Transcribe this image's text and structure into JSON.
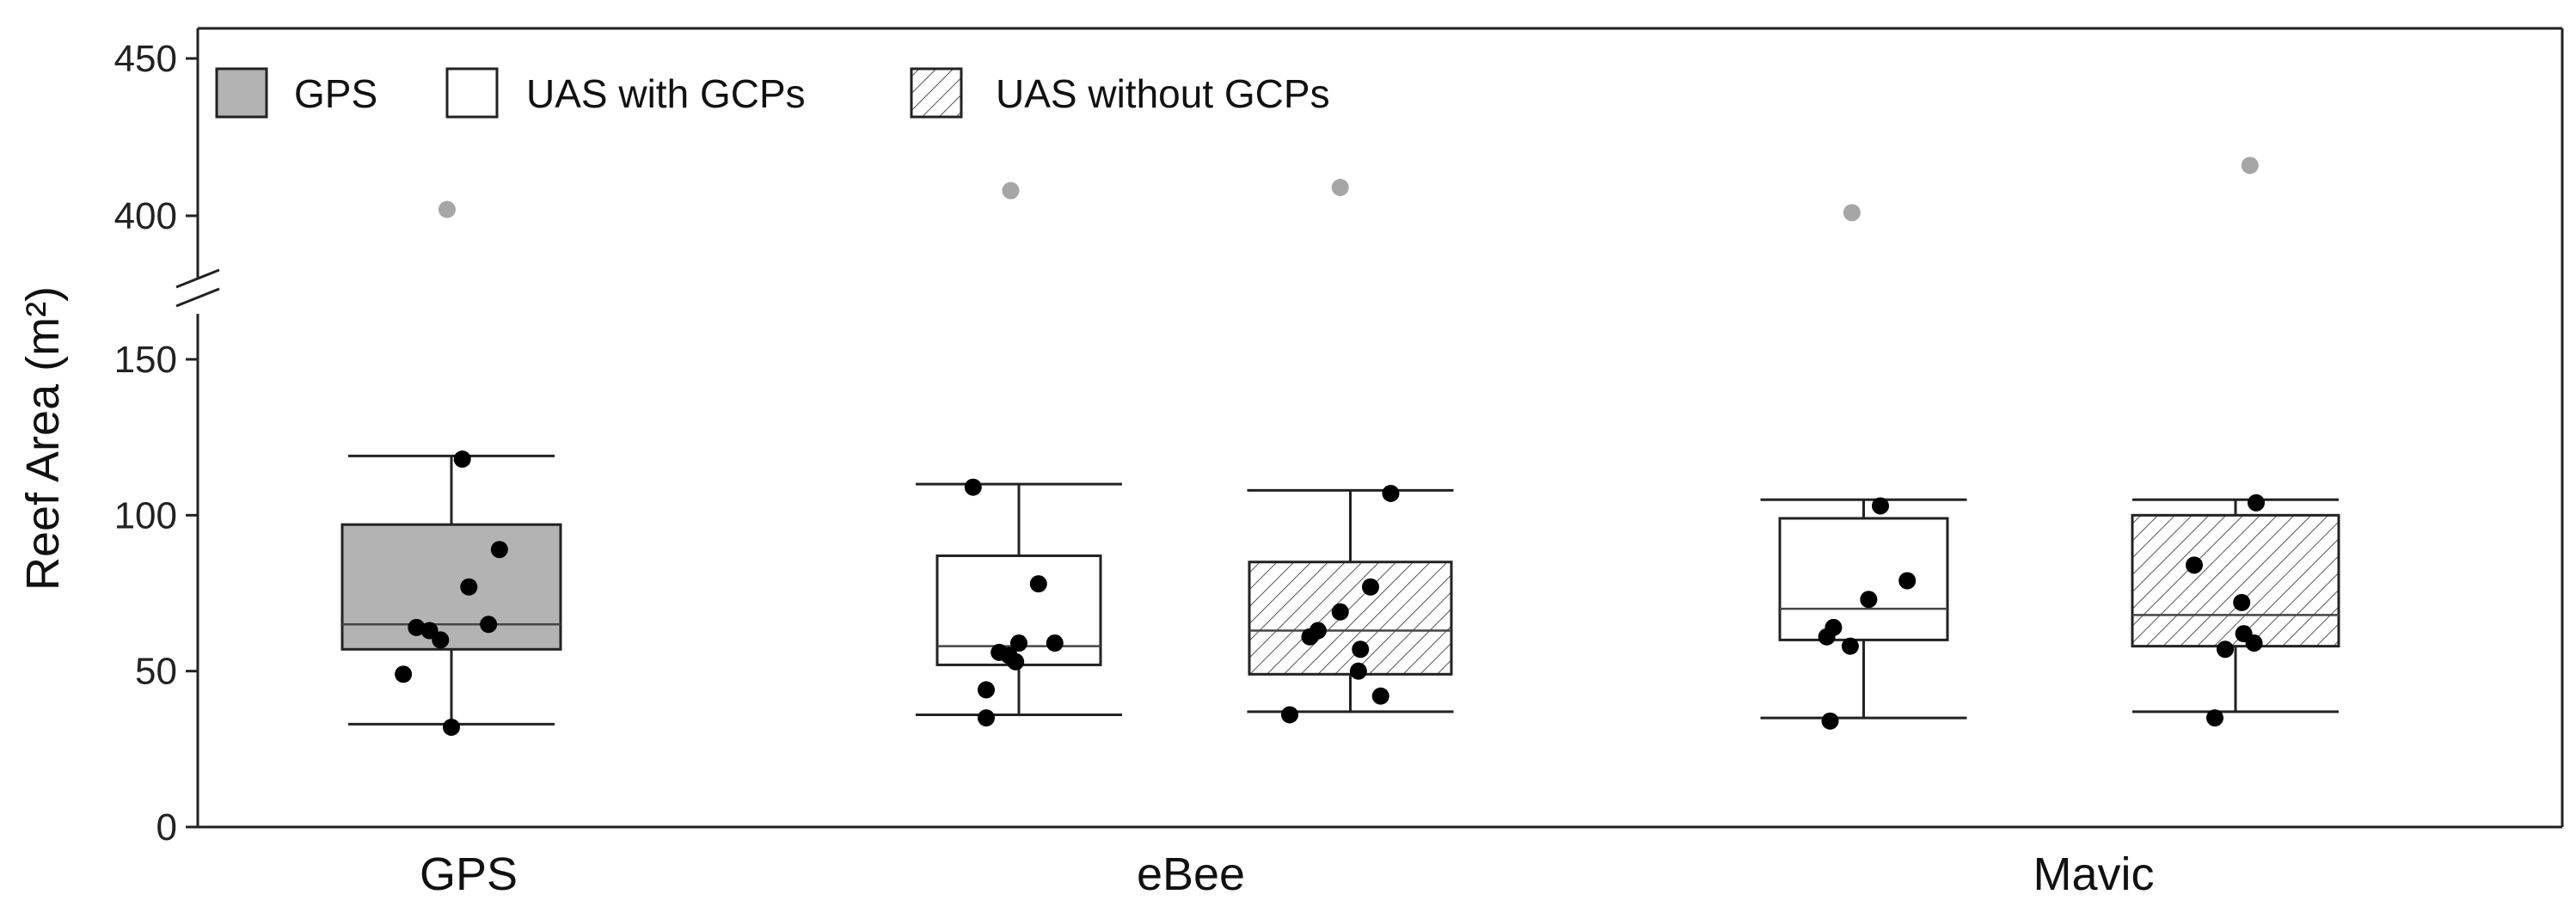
{
  "chart_data": {
    "type": "box",
    "ylabel": "Reef Area (m²)",
    "axis_break": true,
    "lower_yticks": [
      0,
      50,
      100,
      150
    ],
    "upper_yticks": [
      400,
      450
    ],
    "lower_ylim": [
      0,
      155
    ],
    "upper_ylim": [
      388,
      460
    ],
    "categories": [
      "GPS",
      "eBee",
      "Mavic"
    ],
    "legend": [
      {
        "label": "GPS",
        "fill": "#b3b3b3"
      },
      {
        "label": "UAS with GCPs",
        "fill": "#ffffff"
      },
      {
        "label": "UAS without GCPs",
        "fill": "hatched"
      }
    ],
    "boxes": [
      {
        "category": "GPS",
        "method": "GPS",
        "whisker_low": 33,
        "q1": 57,
        "median": 65,
        "q3": 97,
        "whisker_high": 119,
        "points": [
          32,
          49,
          60,
          63,
          64,
          65,
          77,
          89,
          118
        ],
        "outlier": 402
      },
      {
        "category": "eBee",
        "method": "UAS with GCPs",
        "whisker_low": 36,
        "q1": 52,
        "median": 58,
        "q3": 87,
        "whisker_high": 110,
        "points": [
          35,
          44,
          53,
          55,
          56,
          59,
          59,
          78,
          109
        ],
        "outlier": 408
      },
      {
        "category": "eBee",
        "method": "UAS without GCPs",
        "whisker_low": 37,
        "q1": 49,
        "median": 63,
        "q3": 85,
        "whisker_high": 108,
        "points": [
          36,
          42,
          50,
          57,
          61,
          63,
          69,
          77,
          107
        ],
        "outlier": 409
      },
      {
        "category": "Mavic",
        "method": "UAS with GCPs",
        "whisker_low": 35,
        "q1": 60,
        "median": 70,
        "q3": 99,
        "whisker_high": 105,
        "points": [
          34,
          58,
          61,
          64,
          73,
          79,
          103
        ],
        "outlier": 401
      },
      {
        "category": "Mavic",
        "method": "UAS without GCPs",
        "whisker_low": 37,
        "q1": 58,
        "median": 68,
        "q3": 100,
        "whisker_high": 105,
        "points": [
          35,
          57,
          59,
          62,
          72,
          84,
          104
        ],
        "outlier": 416
      }
    ]
  }
}
